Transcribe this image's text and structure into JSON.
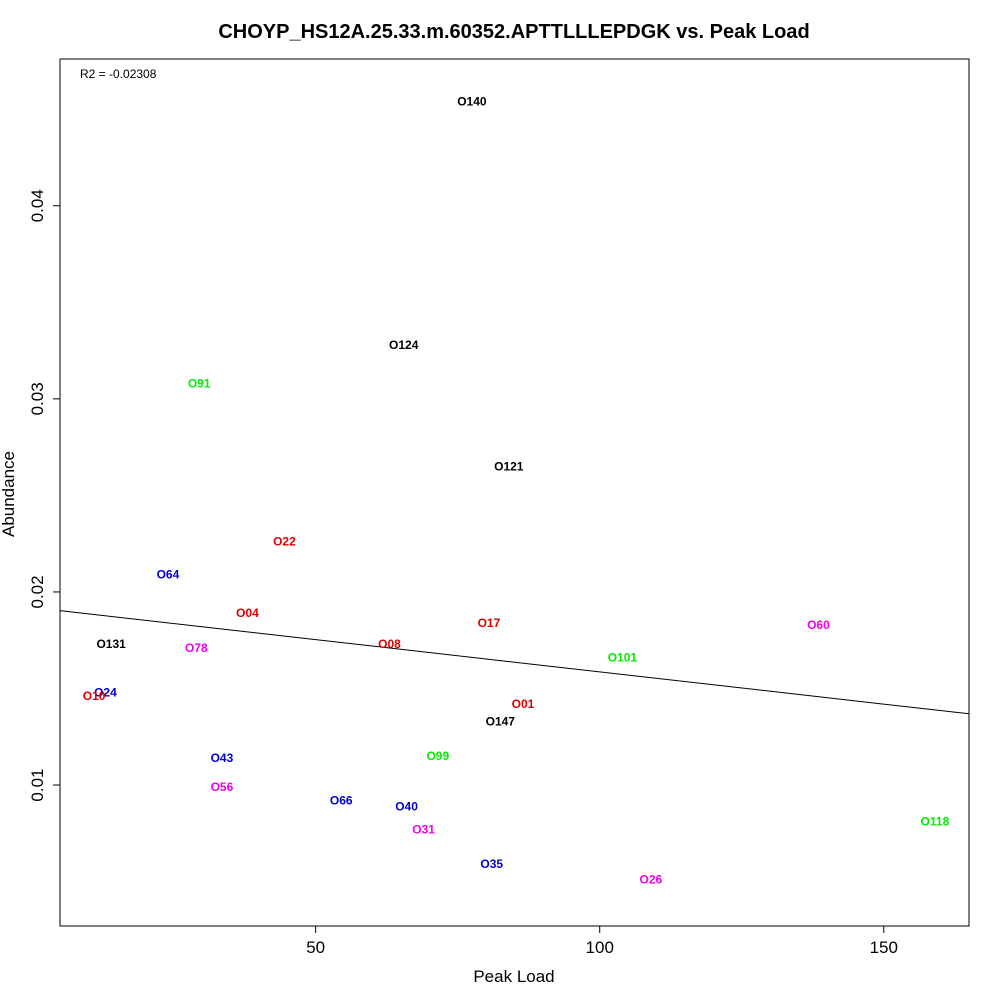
{
  "chart_data": {
    "type": "scatter",
    "title": "CHOYP_HS12A.25.33.m.60352.APTTLLLEPDGK vs. Peak Load",
    "xlabel": "Peak Load",
    "ylabel": "Abundance",
    "annotation": "R2 = -0.02308",
    "xlim": [
      5,
      165
    ],
    "ylim": [
      0.0027,
      0.0476
    ],
    "xticks": [
      {
        "value": 50,
        "label": "50"
      },
      {
        "value": 100,
        "label": "100"
      },
      {
        "value": 150,
        "label": "150"
      }
    ],
    "yticks": [
      {
        "value": 0.01,
        "label": "0.01"
      },
      {
        "value": 0.02,
        "label": "0.02"
      },
      {
        "value": 0.03,
        "label": "0.03"
      },
      {
        "value": 0.04,
        "label": "0.04"
      }
    ],
    "regression": {
      "intercept": 0.0192,
      "slope": -3.34e-05
    },
    "points": [
      {
        "label": "O140",
        "x": 77.5,
        "y": 0.0454,
        "color": "#000000"
      },
      {
        "label": "O124",
        "x": 65.5,
        "y": 0.0328,
        "color": "#000000"
      },
      {
        "label": "O91",
        "x": 29.5,
        "y": 0.0308,
        "color": "#00ee00"
      },
      {
        "label": "O121",
        "x": 84.0,
        "y": 0.0265,
        "color": "#000000"
      },
      {
        "label": "O22",
        "x": 44.5,
        "y": 0.0226,
        "color": "#dd0000"
      },
      {
        "label": "O64",
        "x": 24.0,
        "y": 0.0209,
        "color": "#0000cc"
      },
      {
        "label": "O04",
        "x": 38.0,
        "y": 0.0189,
        "color": "#dd0000"
      },
      {
        "label": "O17",
        "x": 80.5,
        "y": 0.0184,
        "color": "#dd0000"
      },
      {
        "label": "O60",
        "x": 138.5,
        "y": 0.0183,
        "color": "#ee00ee"
      },
      {
        "label": "O131",
        "x": 14.0,
        "y": 0.0173,
        "color": "#000000"
      },
      {
        "label": "O08",
        "x": 63.0,
        "y": 0.0173,
        "color": "#dd0000"
      },
      {
        "label": "O78",
        "x": 29.0,
        "y": 0.0171,
        "color": "#ee00ee"
      },
      {
        "label": "O101",
        "x": 104.0,
        "y": 0.0166,
        "color": "#00ee00"
      },
      {
        "label": "O24",
        "x": 13.0,
        "y": 0.0148,
        "color": "#0000cc"
      },
      {
        "label": "O10",
        "x": 11.0,
        "y": 0.0146,
        "color": "#dd0000"
      },
      {
        "label": "O01",
        "x": 86.5,
        "y": 0.0142,
        "color": "#dd0000"
      },
      {
        "label": "O147",
        "x": 82.5,
        "y": 0.0133,
        "color": "#000000"
      },
      {
        "label": "O99",
        "x": 71.5,
        "y": 0.0115,
        "color": "#00ee00"
      },
      {
        "label": "O43",
        "x": 33.5,
        "y": 0.0114,
        "color": "#0000cc"
      },
      {
        "label": "O56",
        "x": 33.5,
        "y": 0.0099,
        "color": "#ee00ee"
      },
      {
        "label": "O66",
        "x": 54.5,
        "y": 0.0092,
        "color": "#0000cc"
      },
      {
        "label": "O40",
        "x": 66.0,
        "y": 0.0089,
        "color": "#0000cc"
      },
      {
        "label": "O118",
        "x": 159.0,
        "y": 0.0081,
        "color": "#00ee00"
      },
      {
        "label": "O31",
        "x": 69.0,
        "y": 0.0077,
        "color": "#ee00ee"
      },
      {
        "label": "O35",
        "x": 81.0,
        "y": 0.0059,
        "color": "#0000cc"
      },
      {
        "label": "O26",
        "x": 109.0,
        "y": 0.0051,
        "color": "#ee00ee"
      }
    ]
  }
}
